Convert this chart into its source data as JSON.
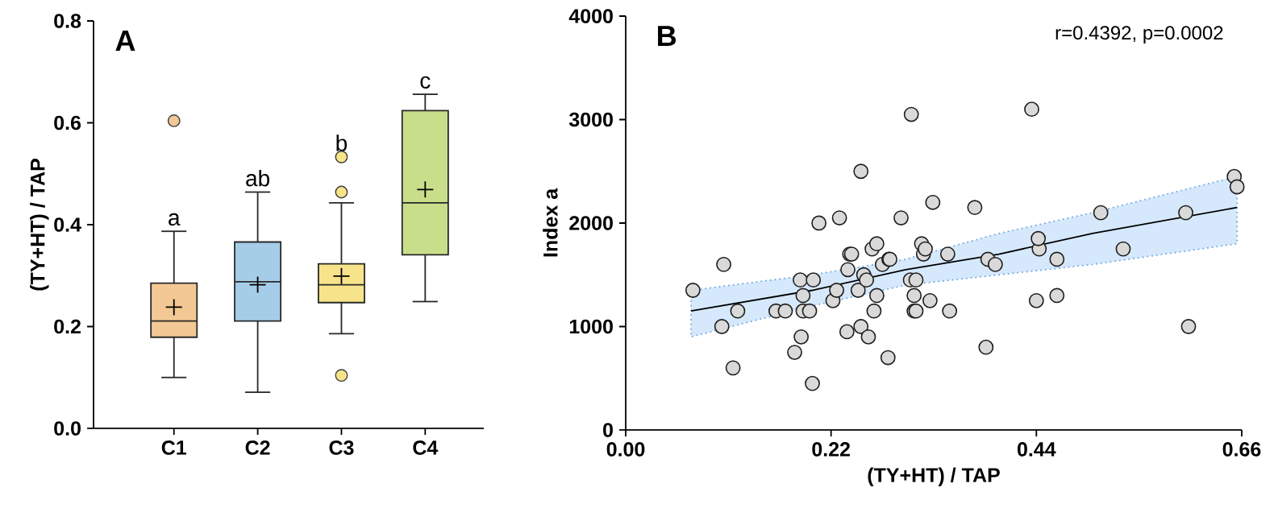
{
  "chart_data": [
    {
      "type": "box",
      "title": "A",
      "ylabel": "(TY+HT) / TAP",
      "categories": [
        "C1",
        "C2",
        "C3",
        "C4"
      ],
      "colors": [
        "#f2c894",
        "#a6cde8",
        "#f7e48a",
        "#c9de8a"
      ],
      "boxes": [
        {
          "low": 0.1,
          "q1": 0.179,
          "median": 0.211,
          "q3": 0.285,
          "high": 0.387,
          "mean": 0.238,
          "outliers": [
            0.604
          ]
        },
        {
          "low": 0.071,
          "q1": 0.211,
          "median": 0.288,
          "q3": 0.366,
          "high": 0.464,
          "mean": 0.282
        },
        {
          "low": 0.186,
          "q1": 0.247,
          "median": 0.282,
          "q3": 0.323,
          "high": 0.443,
          "mean": 0.299,
          "outliers": [
            0.533,
            0.464,
            0.104
          ]
        },
        {
          "low": 0.249,
          "q1": 0.341,
          "median": 0.443,
          "q3": 0.624,
          "high": 0.656,
          "mean": 0.469
        }
      ],
      "ylim": [
        0,
        0.8
      ],
      "yticks": [
        {
          "value": 0,
          "label": "0.0"
        },
        {
          "value": 0.2,
          "label": "0.2"
        },
        {
          "value": 0.4,
          "label": "0.4"
        },
        {
          "value": 0.6,
          "label": "0.6"
        },
        {
          "value": 0.8,
          "label": "0.8"
        }
      ],
      "annotations": [
        "a",
        "ab",
        "b",
        "c"
      ]
    },
    {
      "type": "scatter",
      "title": "B",
      "xlabel": "(TY+HT) / TAP",
      "ylabel": "Index a",
      "xlim": [
        0,
        0.66
      ],
      "ylim": [
        0,
        4000
      ],
      "xticks": [
        {
          "value": 0,
          "label": "0.00"
        },
        0.22,
        0.44,
        0.66
      ],
      "yticks": [
        0,
        1000,
        2000,
        3000,
        4000
      ],
      "series": [
        {
          "color": "#d9d9d9",
          "marker": "circle",
          "x": [
            0.072,
            0.105,
            0.103,
            0.12,
            0.115,
            0.161,
            0.171,
            0.181,
            0.188,
            0.187,
            0.19,
            0.19,
            0.197,
            0.201,
            0.2,
            0.222,
            0.226,
            0.237,
            0.238,
            0.24,
            0.242,
            0.249,
            0.252,
            0.255,
            0.258,
            0.26,
            0.264,
            0.269,
            0.266,
            0.275,
            0.282,
            0.281,
            0.305,
            0.309,
            0.311,
            0.309,
            0.311,
            0.319,
            0.326,
            0.345,
            0.347,
            0.386,
            0.388,
            0.396,
            0.44,
            0.443,
            0.462,
            0.462,
            0.533,
            0.603,
            0.306,
            0.435,
            0.252,
            0.329,
            0.374,
            0.207,
            0.229,
            0.295,
            0.509,
            0.6,
            0.652,
            0.655,
            0.269,
            0.317,
            0.321,
            0.442,
            0.283
          ],
          "values": [
            1350,
            1600,
            1000,
            1150,
            600,
            1150,
            1150,
            750,
            900,
            1450,
            1300,
            1150,
            1150,
            1450,
            450,
            1250,
            1350,
            950,
            1550,
            1700,
            1700,
            1350,
            1000,
            1500,
            1450,
            900,
            1750,
            1300,
            1150,
            1600,
            1650,
            700,
            1450,
            1300,
            1450,
            1150,
            1150,
            1700,
            1250,
            1700,
            1150,
            800,
            1650,
            1600,
            1250,
            1750,
            1650,
            1300,
            1750,
            1000,
            3050,
            3100,
            2500,
            2200,
            2150,
            2000,
            2050,
            2050,
            2100,
            2100,
            2450,
            2350,
            1800,
            1800,
            1750,
            1850,
            1650
          ]
        },
        {
          "type": "line",
          "color": "#000000",
          "marker": "none",
          "line_style": "solid",
          "x": [
            0.07,
            0.2,
            0.3,
            0.4,
            0.5,
            0.655
          ],
          "values": [
            1150,
            1350,
            1550,
            1700,
            1900,
            2150
          ],
          "lower": [
            900,
            1200,
            1400,
            1500,
            1600,
            1800
          ],
          "upper": [
            1350,
            1500,
            1650,
            1900,
            2100,
            2450
          ]
        }
      ],
      "annotations": [
        "r=0.4392, p=0.0002"
      ]
    }
  ]
}
